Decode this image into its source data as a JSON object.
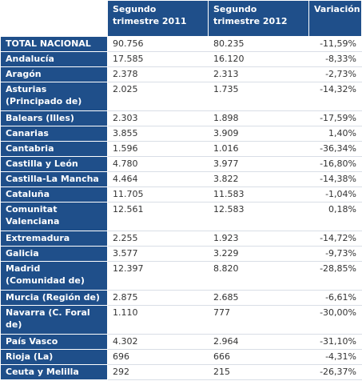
{
  "table": {
    "headers": [
      "",
      "Segundo trimestre 2011",
      "Segundo trimestre 2012",
      "Variación"
    ],
    "rows": [
      {
        "region": "TOTAL NACIONAL",
        "v2011": "90.756",
        "v2012": "80.235",
        "var": "-11,59%"
      },
      {
        "region": "Andalucía",
        "v2011": "17.585",
        "v2012": "16.120",
        "var": "-8,33%"
      },
      {
        "region": "Aragón",
        "v2011": "2.378",
        "v2012": "2.313",
        "var": "-2,73%"
      },
      {
        "region": "Asturias (Principado de)",
        "v2011": "2.025",
        "v2012": "1.735",
        "var": "-14,32%"
      },
      {
        "region": "Balears (Illes)",
        "v2011": "2.303",
        "v2012": "1.898",
        "var": "-17,59%"
      },
      {
        "region": "Canarias",
        "v2011": "3.855",
        "v2012": "3.909",
        "var": "1,40%"
      },
      {
        "region": "Cantabria",
        "v2011": "1.596",
        "v2012": "1.016",
        "var": "-36,34%"
      },
      {
        "region": "Castilla y León",
        "v2011": "4.780",
        "v2012": "3.977",
        "var": "-16,80%"
      },
      {
        "region": "Castilla-La Mancha",
        "v2011": "4.464",
        "v2012": "3.822",
        "var": "-14,38%"
      },
      {
        "region": "Cataluña",
        "v2011": "11.705",
        "v2012": "11.583",
        "var": "-1,04%"
      },
      {
        "region": "Comunitat Valenciana",
        "v2011": "12.561",
        "v2012": "12.583",
        "var": "0,18%"
      },
      {
        "region": "Extremadura",
        "v2011": "2.255",
        "v2012": "1.923",
        "var": "-14,72%"
      },
      {
        "region": "Galicia",
        "v2011": "3.577",
        "v2012": "3.229",
        "var": "-9,73%"
      },
      {
        "region": "Madrid (Comunidad de)",
        "v2011": "12.397",
        "v2012": "8.820",
        "var": "-28,85%"
      },
      {
        "region": "Murcia (Región de)",
        "v2011": "2.875",
        "v2012": "2.685",
        "var": "-6,61%"
      },
      {
        "region": "Navarra (C. Foral de)",
        "v2011": "1.110",
        "v2012": "777",
        "var": "-30,00%"
      },
      {
        "region": "País Vasco",
        "v2011": "4.302",
        "v2012": "2.964",
        "var": "-31,10%"
      },
      {
        "region": "Rioja (La)",
        "v2011": "696",
        "v2012": "666",
        "var": "-4,31%"
      },
      {
        "region": "Ceuta y Melilla",
        "v2011": "292",
        "v2012": "215",
        "var": "-26,37%"
      }
    ]
  },
  "colors": {
    "header_bg": "#1f4f8a",
    "header_text": "#ffffff"
  }
}
